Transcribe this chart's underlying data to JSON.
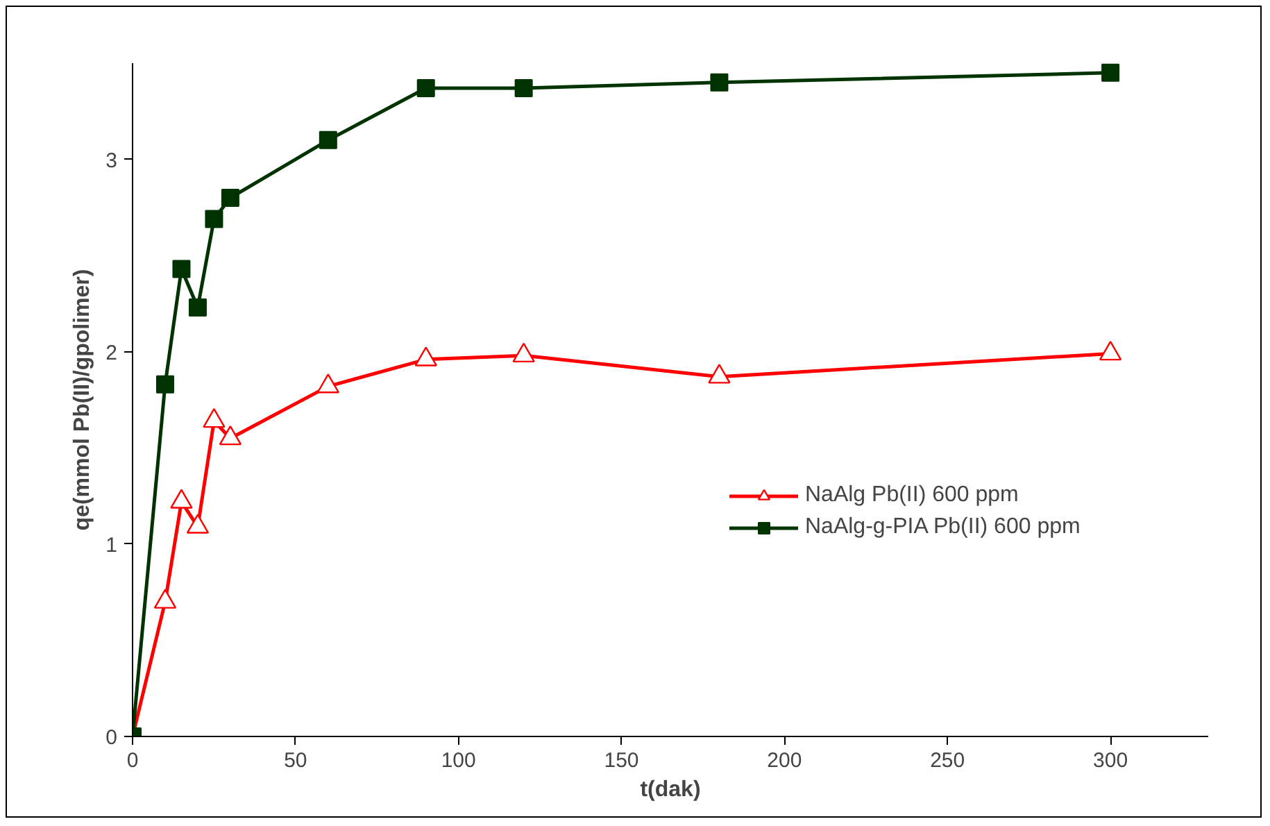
{
  "chart_data": {
    "type": "line",
    "xlabel": "t(dak)",
    "ylabel": "qe(mmol Pb(II)/gpolimer)",
    "x": [
      0,
      10,
      15,
      20,
      25,
      30,
      60,
      90,
      120,
      180,
      300
    ],
    "series": [
      {
        "name": "NaAlg Pb(II) 600 ppm",
        "color": "#ff0000",
        "marker": "triangle",
        "values": [
          0,
          0.7,
          1.22,
          1.09,
          1.64,
          1.55,
          1.82,
          1.96,
          1.98,
          1.87,
          1.99
        ]
      },
      {
        "name": "NaAlg-g-PIA Pb(II) 600 ppm",
        "color": "#003300",
        "marker": "square",
        "values": [
          0,
          1.83,
          2.43,
          2.23,
          2.69,
          2.8,
          3.1,
          3.37,
          3.37,
          3.4,
          3.45
        ]
      }
    ],
    "xlim": [
      0,
      330
    ],
    "ylim": [
      0,
      3.5
    ],
    "xticks": [
      0,
      50,
      100,
      150,
      200,
      250,
      300
    ],
    "yticks": [
      0,
      1,
      2,
      3
    ],
    "grid": false,
    "legend": "right",
    "line_style": "solid"
  }
}
